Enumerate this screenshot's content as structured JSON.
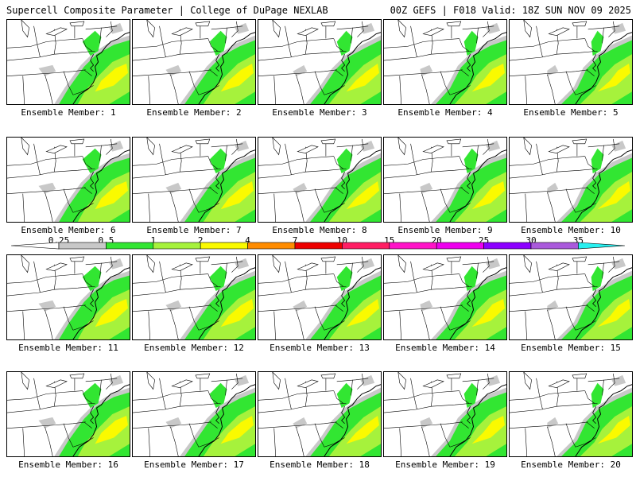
{
  "header": {
    "title": "Supercell Composite Parameter | College of DuPage NEXLAB",
    "run_info": "00Z GEFS | F018 Valid: 18Z SUN NOV 09 2025"
  },
  "colors": {
    "s025": "#c8c8c8",
    "s05": "#32e632",
    "s1": "#a6f23c",
    "s2": "#fafa00",
    "s4": "#ff8c00",
    "s7": "#ee0000",
    "s10": "#ff1e64",
    "s15": "#ff14c8",
    "s20": "#ee00ee",
    "s25": "#8c00ff",
    "s30": "#aa5adc",
    "s35": "#28f0f0"
  },
  "legend": {
    "values": [
      "0.25",
      "0.5",
      "1",
      "2",
      "4",
      "7",
      "10",
      "15",
      "20",
      "25",
      "30",
      "35"
    ]
  },
  "panels": [
    {
      "label": "Ensemble Member: 1"
    },
    {
      "label": "Ensemble Member: 2"
    },
    {
      "label": "Ensemble Member: 3"
    },
    {
      "label": "Ensemble Member: 4"
    },
    {
      "label": "Ensemble Member: 5"
    },
    {
      "label": "Ensemble Member: 6"
    },
    {
      "label": "Ensemble Member: 7"
    },
    {
      "label": "Ensemble Member: 8"
    },
    {
      "label": "Ensemble Member: 9"
    },
    {
      "label": "Ensemble Member: 10"
    },
    {
      "label": "Ensemble Member: 11"
    },
    {
      "label": "Ensemble Member: 12"
    },
    {
      "label": "Ensemble Member: 13"
    },
    {
      "label": "Ensemble Member: 14"
    },
    {
      "label": "Ensemble Member: 15"
    },
    {
      "label": "Ensemble Member: 16"
    },
    {
      "label": "Ensemble Member: 17"
    },
    {
      "label": "Ensemble Member: 18"
    },
    {
      "label": "Ensemble Member: 19"
    },
    {
      "label": "Ensemble Member: 20"
    }
  ]
}
